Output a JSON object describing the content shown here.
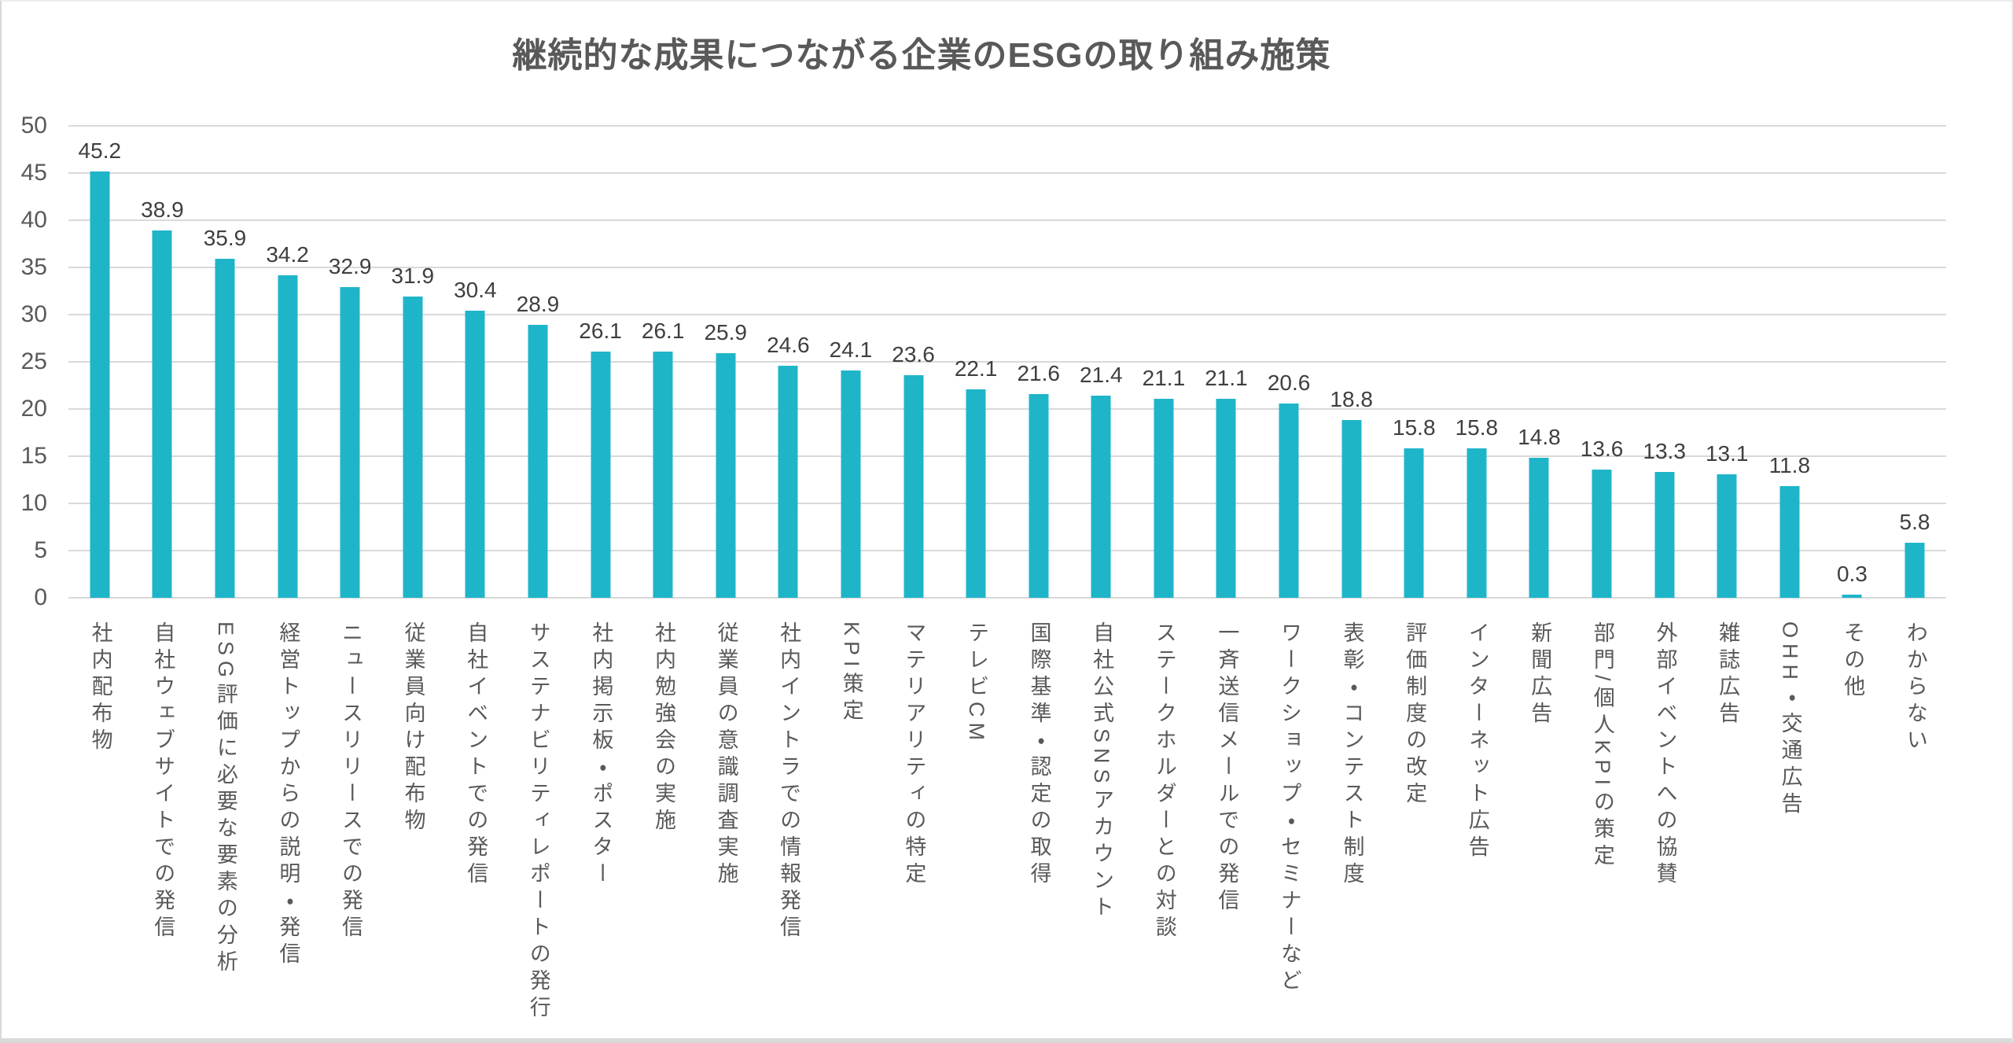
{
  "page": {
    "background": "#ffffff",
    "frame_border_color": "#d9d9d9"
  },
  "chart_data": {
    "type": "bar",
    "title": "継続的な成果につながる企業のESGの取り組み施策",
    "categories": [
      "社内配布物",
      "自社ウェブサイトでの発信",
      "ESG評価に必要な要素の分析",
      "経営トップからの説明・発信",
      "ニュースリリースでの発信",
      "従業員向け配布物",
      "自社イベントでの発信",
      "サステナビリティレポートの発行",
      "社内掲示板・ポスター",
      "社内勉強会の実施",
      "従業員の意識調査実施",
      "社内イントラでの情報発信",
      "KPI策定",
      "マテリアリティの特定",
      "テレビCM",
      "国際基準・認定の取得",
      "自社公式SNSアカウント",
      "ステークホルダーとの対談",
      "一斉送信メールでの発信",
      "ワークショップ・セミナーなど",
      "表彰・コンテスト制度",
      "評価制度の改定",
      "インターネット広告",
      "新聞広告",
      "部門/個人KPIの策定",
      "外部イベントへの協賛",
      "雑誌広告",
      "OHH・交通広告",
      "その他",
      "わからない"
    ],
    "values": [
      45.2,
      38.9,
      35.9,
      34.2,
      32.9,
      31.9,
      30.4,
      28.9,
      26.1,
      26.1,
      25.9,
      24.6,
      24.1,
      23.6,
      22.1,
      21.6,
      21.4,
      21.1,
      21.1,
      20.6,
      18.8,
      15.8,
      15.8,
      14.8,
      13.6,
      13.3,
      13.1,
      11.8,
      0.3,
      5.8
    ],
    "xlabel": "",
    "ylabel": "",
    "ylim": [
      0,
      50
    ],
    "y_ticks": [
      0,
      5,
      10,
      15,
      20,
      25,
      30,
      35,
      40,
      45,
      50
    ],
    "grid": "horizontal",
    "legend": "none",
    "value_labels_shown": true,
    "colors": {
      "bar": "#1fb5c9",
      "title": "#595959",
      "value_label": "#3f3f3f",
      "axis_label": "#595959",
      "category_label": "#595959",
      "gridline": "#d9d9d9"
    }
  }
}
